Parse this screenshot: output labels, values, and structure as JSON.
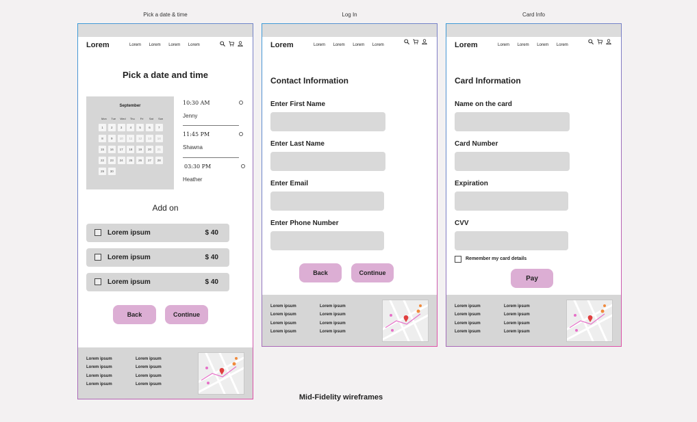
{
  "labels": {
    "frame1": "Pick a date & time",
    "frame2": "Log In",
    "frame3": "Card Info",
    "bottom": "Mid-Fidelity wireframes"
  },
  "nav": {
    "logo": "Lorem",
    "links": [
      "Lorem",
      "Lorem",
      "Lorem",
      "Lorem"
    ],
    "icons": [
      "search-icon",
      "cart-icon",
      "user-icon"
    ]
  },
  "pick": {
    "title": "Pick a date and time",
    "calendar": {
      "month": "September",
      "weekdays": [
        "Mon",
        "Tue",
        "Wed",
        "Thu",
        "Fri",
        "Sat",
        "Sun"
      ],
      "rows": [
        [
          "1",
          "2",
          "3",
          "4",
          "5",
          "6",
          "7"
        ],
        [
          "8",
          "9",
          "10",
          "11",
          "12",
          "13",
          "14"
        ],
        [
          "15",
          "16",
          "17",
          "18",
          "19",
          "20",
          "21"
        ],
        [
          "22",
          "23",
          "24",
          "25",
          "26",
          "27",
          "28"
        ],
        [
          "29",
          "30",
          "",
          "",
          "",
          "",
          ""
        ]
      ]
    },
    "slots": [
      {
        "time": "10:30 AM",
        "name": "Jenny"
      },
      {
        "time": "11:45 PM",
        "name": "Shawna"
      },
      {
        "time": "03:30 PM",
        "name": "Heather"
      }
    ],
    "addon_title": "Add on",
    "addons": [
      {
        "label": "Lorem ipsum",
        "price": "$ 40"
      },
      {
        "label": "Lorem ipsum",
        "price": "$ 40"
      },
      {
        "label": "Lorem ipsum",
        "price": "$ 40"
      }
    ],
    "back": "Back",
    "continue": "Continue"
  },
  "login": {
    "title": "Contact Information",
    "fields": [
      "Enter First Name",
      "Enter Last Name",
      "Enter Email",
      "Enter Phone Number"
    ],
    "back": "Back",
    "continue": "Continue"
  },
  "card": {
    "title": "Card Information",
    "fields": [
      "Name on the card",
      "Card Number",
      "Expiration",
      "CVV"
    ],
    "remember": "Remember my card details",
    "pay": "Pay"
  },
  "footer": {
    "col1": [
      "Lorem ipsum",
      "Lorem ipsum",
      "Lorem ipsum",
      "Lorem ipsum"
    ],
    "col2": [
      "Lorem ipsum",
      "Lorem ipsum",
      "Lorem ipsum",
      "Lorem ipsum"
    ]
  },
  "colors": {
    "button": "#dcaed4",
    "field": "#d9d9d9",
    "panel": "#d6d6d6",
    "border_start": "#3a9bd8",
    "border_end": "#e04fa7"
  }
}
